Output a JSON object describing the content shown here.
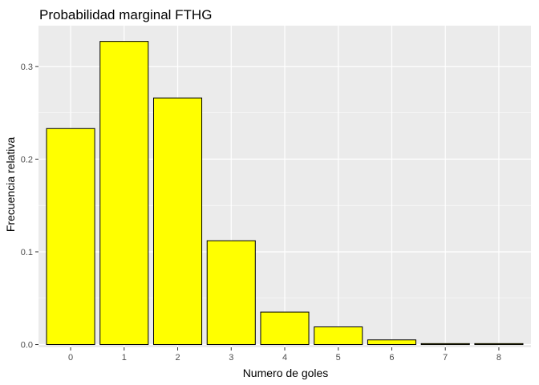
{
  "chart_data": {
    "type": "bar",
    "title": "Probabilidad marginal FTHG",
    "xlabel": "Numero de goles",
    "ylabel": "Frecuencia relativa",
    "categories": [
      "0",
      "1",
      "2",
      "3",
      "4",
      "5",
      "6",
      "7",
      "8"
    ],
    "values": [
      0.233,
      0.327,
      0.266,
      0.112,
      0.035,
      0.019,
      0.005,
      0.001,
      0.001
    ],
    "ylim": [
      -0.003,
      0.344
    ],
    "yticks": [
      0.0,
      0.1,
      0.2,
      0.3
    ],
    "ytick_labels": [
      "0.0",
      "0.1",
      "0.2",
      "0.3"
    ],
    "grid": true,
    "colors": {
      "bar_fill": "#FFFF00",
      "bar_stroke": "#000000",
      "panel_background": "#EBEBEB",
      "grid": "#FFFFFF"
    }
  }
}
